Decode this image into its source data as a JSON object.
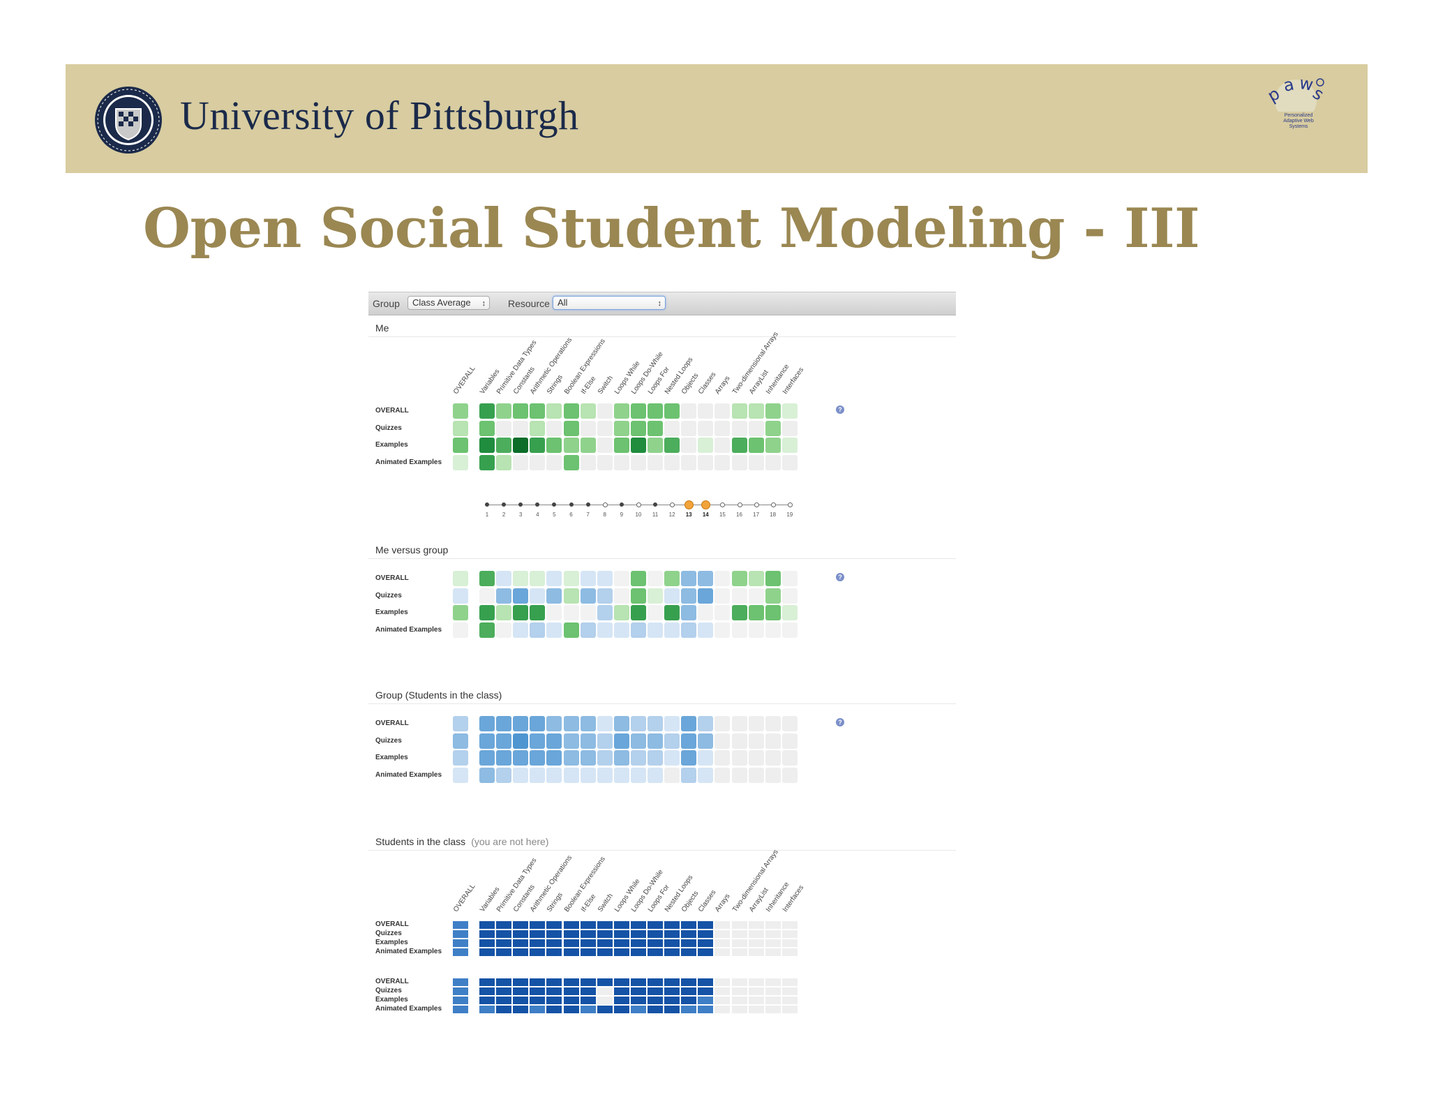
{
  "header": {
    "university_name": "University of Pittsburgh",
    "seal_icon": "university-seal-icon",
    "logo_word": "paws",
    "logo_tagline": "Personalized Adaptive Web Systems"
  },
  "slide": {
    "title": "Open Social Student Modeling - III"
  },
  "toolbar": {
    "group_label": "Group",
    "group_value": "Class Average",
    "resource_label": "Resource",
    "resource_value": "All"
  },
  "columns": [
    "OVERALL",
    "Variables",
    "Primitive Data Types",
    "Constants",
    "Arithmetic Operations",
    "Strings",
    "Boolean Expressions",
    "If-Else",
    "Switch",
    "Loops While",
    "Loops Do-While",
    "Loops For",
    "Nested Loops",
    "Objects",
    "Classes",
    "Arrays",
    "Two-dimensional Arrays",
    "ArrayList",
    "Inheritance",
    "Interfaces"
  ],
  "row_labels": [
    "OVERALL",
    "Quizzes",
    "Examples",
    "Animated Examples"
  ],
  "sections": {
    "me": {
      "title": "Me"
    },
    "me_vs_group": {
      "title": "Me versus group"
    },
    "group": {
      "title": "Group (Students in the class)"
    },
    "students": {
      "title": "Students in the class",
      "note": "(you are not here)"
    }
  },
  "timeline": {
    "labels": [
      "1",
      "2",
      "3",
      "4",
      "5",
      "6",
      "7",
      "8",
      "9",
      "10",
      "11",
      "12",
      "13",
      "14",
      "15",
      "16",
      "17",
      "18",
      "19"
    ],
    "states": [
      "f",
      "f",
      "f",
      "f",
      "f",
      "f",
      "f",
      "o",
      "f",
      "o",
      "f",
      "o",
      "c",
      "c",
      "o",
      "o",
      "o",
      "o",
      "o"
    ]
  },
  "grids": {
    "me": [
      [
        3,
        6,
        3,
        4,
        4,
        2,
        4,
        2,
        0,
        3,
        4,
        4,
        4,
        0,
        0,
        0,
        2,
        2,
        3,
        1
      ],
      [
        2,
        4,
        0,
        0,
        2,
        0,
        4,
        0,
        0,
        3,
        4,
        4,
        0,
        0,
        0,
        0,
        0,
        0,
        3,
        0
      ],
      [
        4,
        7,
        5,
        8,
        6,
        4,
        3,
        3,
        0,
        4,
        7,
        3,
        5,
        0,
        1,
        0,
        5,
        4,
        3,
        1
      ],
      [
        1,
        6,
        2,
        0,
        0,
        0,
        4,
        0,
        0,
        0,
        0,
        0,
        0,
        0,
        0,
        0,
        0,
        0,
        0,
        0
      ]
    ],
    "me_vs_group": [
      [
        1,
        5,
        -1,
        1,
        1,
        -1,
        1,
        -1,
        -1,
        0,
        4,
        0,
        3,
        -3,
        -3,
        0,
        3,
        2,
        4,
        0
      ],
      [
        -1,
        0,
        -3,
        -4,
        -1,
        -3,
        2,
        -3,
        -2,
        0,
        4,
        1,
        -1,
        -3,
        -4,
        0,
        0,
        0,
        3,
        0
      ],
      [
        3,
        6,
        2,
        6,
        6,
        0,
        0,
        0,
        -2,
        2,
        6,
        0,
        6,
        -3,
        0,
        0,
        5,
        4,
        4,
        1
      ],
      [
        0,
        5,
        0,
        -1,
        -2,
        -1,
        4,
        -2,
        -1,
        -1,
        -2,
        -1,
        -1,
        -2,
        -1,
        0,
        0,
        0,
        0,
        0
      ]
    ],
    "group": [
      [
        2,
        4,
        4,
        4,
        4,
        3,
        3,
        3,
        1,
        3,
        2,
        2,
        1,
        4,
        2,
        0,
        0,
        0,
        0,
        0
      ],
      [
        3,
        4,
        4,
        5,
        4,
        4,
        3,
        3,
        2,
        4,
        3,
        3,
        2,
        4,
        3,
        0,
        0,
        0,
        0,
        0
      ],
      [
        2,
        4,
        4,
        4,
        4,
        4,
        3,
        3,
        2,
        3,
        2,
        2,
        1,
        4,
        1,
        0,
        0,
        0,
        0,
        0
      ],
      [
        1,
        3,
        2,
        1,
        1,
        1,
        1,
        1,
        1,
        1,
        1,
        1,
        0,
        2,
        1,
        0,
        0,
        0,
        0,
        0
      ]
    ]
  },
  "colors": {
    "empty": "#eeeeee",
    "green_scale": [
      "#eeeeee",
      "#d8f0d6",
      "#b8e3b2",
      "#8fd28c",
      "#6cc270",
      "#4cad5c",
      "#37a04f",
      "#208c3e",
      "#0c6d2a"
    ],
    "blue_scale": [
      "#eeeeee",
      "#d5e5f5",
      "#b3d0ec",
      "#8dbbe2",
      "#6aa6d9",
      "#4f96d0"
    ],
    "student_blue": "#1553a6",
    "student_blue_light": "#3f7fc6",
    "highlight_orange": "#f2a33a"
  },
  "icons": {
    "help": "help-question-icon"
  }
}
